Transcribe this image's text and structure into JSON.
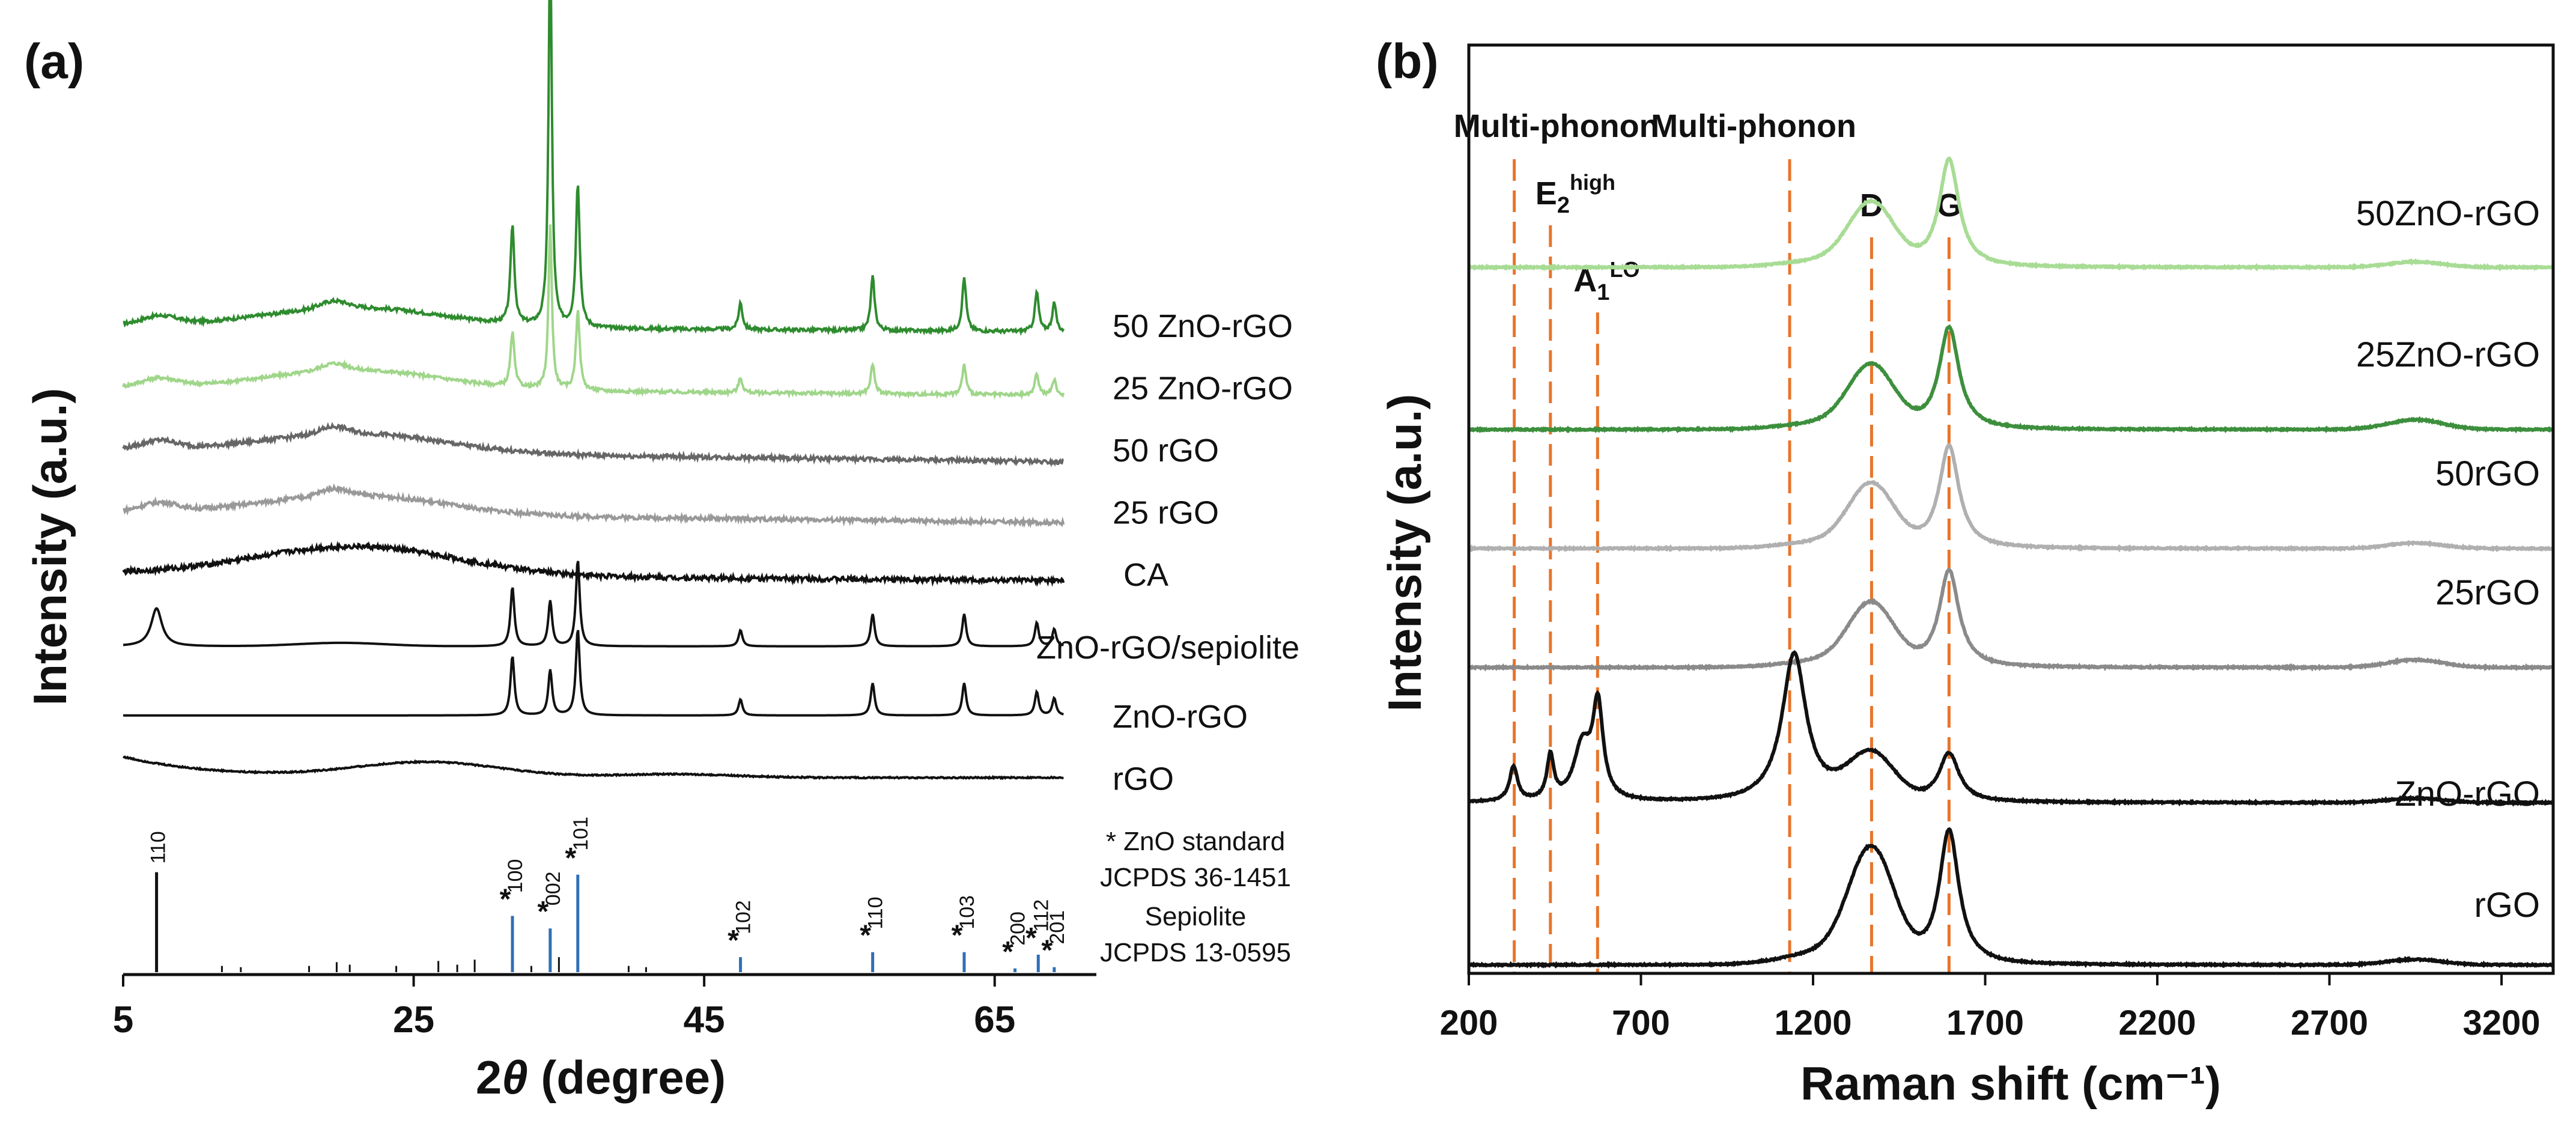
{
  "chart_data": [
    {
      "panel": "(a)",
      "type": "line",
      "xlabel_prefix": "2",
      "xlabel_theta": "θ",
      "xlabel_suffix": " (degree)",
      "ylabel": "Intensity (a.u.)",
      "xlim": [
        5,
        72
      ],
      "xticks": [
        5,
        25,
        45,
        65
      ],
      "series": [
        {
          "name": "50 ZnO-rGO",
          "color": "#2e8b2e",
          "offset": 9.4,
          "base_type": "composite",
          "peak_scale": 1.0,
          "noise": 0.05,
          "baseline_slope": -0.1
        },
        {
          "name": "25 ZnO-rGO",
          "color": "#9fd68a",
          "offset": 8.5,
          "base_type": "composite",
          "peak_scale": 0.55,
          "noise": 0.05,
          "baseline_slope": -0.12
        },
        {
          "name": "50 rGO",
          "color": "#666666",
          "offset": 7.6,
          "base_type": "composite",
          "peak_scale": 0.0,
          "noise": 0.06,
          "baseline_slope": -0.18
        },
        {
          "name": "25 rGO",
          "color": "#999999",
          "offset": 6.7,
          "base_type": "composite",
          "peak_scale": 0.0,
          "noise": 0.06,
          "baseline_slope": -0.16
        },
        {
          "name": "CA",
          "color": "#111111",
          "offset": 5.8,
          "base_type": "ca",
          "peak_scale": 0.0,
          "noise": 0.07,
          "baseline_slope": -0.1
        },
        {
          "name": "ZnO-rGO/sepiolite",
          "color": "#111111",
          "offset": 4.75,
          "base_type": "sepiolite",
          "peak_scale": 0.6,
          "noise": 0.0,
          "baseline_slope": 0.0
        },
        {
          "name": "ZnO-rGO",
          "color": "#111111",
          "offset": 3.75,
          "base_type": "flat",
          "peak_scale": 0.6,
          "noise": 0.0,
          "baseline_slope": 0.0
        },
        {
          "name": "rGO",
          "color": "#111111",
          "offset": 2.85,
          "base_type": "rgo",
          "peak_scale": 0.0,
          "noise": 0.02,
          "baseline_slope": 0.0
        }
      ],
      "zno_peaks": [
        {
          "x": 31.8,
          "h": 0.55
        },
        {
          "x": 34.4,
          "h": 0.42
        },
        {
          "x": 36.3,
          "h": 0.8
        },
        {
          "x": 47.5,
          "h": 0.15
        },
        {
          "x": 56.6,
          "h": 0.3
        },
        {
          "x": 62.9,
          "h": 0.3
        },
        {
          "x": 67.9,
          "h": 0.22
        },
        {
          "x": 69.1,
          "h": 0.16
        }
      ],
      "reference_lines": {
        "zno": [
          {
            "x": 31.8,
            "h": 0.45,
            "hkl": "100",
            "star": true
          },
          {
            "x": 34.4,
            "h": 0.35,
            "hkl": "002",
            "star": true
          },
          {
            "x": 36.3,
            "h": 0.78,
            "hkl": "101",
            "star": true
          },
          {
            "x": 47.5,
            "h": 0.12,
            "hkl": "102",
            "star": true
          },
          {
            "x": 56.6,
            "h": 0.16,
            "hkl": "110",
            "star": true
          },
          {
            "x": 62.9,
            "h": 0.16,
            "hkl": "103",
            "star": true
          },
          {
            "x": 66.4,
            "h": 0.03,
            "hkl": "200",
            "star": true
          },
          {
            "x": 68.0,
            "h": 0.14,
            "hkl": "112",
            "star": true
          },
          {
            "x": 69.1,
            "h": 0.04,
            "hkl": "201",
            "star": true
          }
        ],
        "sepiolite": [
          {
            "x": 7.3,
            "h": 0.8,
            "hkl": "110"
          },
          {
            "x": 11.8,
            "h": 0.05
          },
          {
            "x": 13.1,
            "h": 0.04
          },
          {
            "x": 17.8,
            "h": 0.05
          },
          {
            "x": 19.7,
            "h": 0.08
          },
          {
            "x": 20.6,
            "h": 0.06
          },
          {
            "x": 23.8,
            "h": 0.05
          },
          {
            "x": 26.7,
            "h": 0.09
          },
          {
            "x": 28.0,
            "h": 0.06
          },
          {
            "x": 29.2,
            "h": 0.1
          },
          {
            "x": 33.1,
            "h": 0.05
          },
          {
            "x": 35.0,
            "h": 0.12
          },
          {
            "x": 39.8,
            "h": 0.05
          },
          {
            "x": 41.0,
            "h": 0.04
          }
        ]
      },
      "legend_notes": [
        "* ZnO standard",
        "JCPDS 36-1451",
        "Sepiolite",
        "JCPDS 13-0595"
      ]
    },
    {
      "panel": "(b)",
      "type": "line",
      "xlabel": "Raman shift (cm⁻¹)",
      "ylabel": "Intensity (a.u.)",
      "xlim": [
        200,
        3350
      ],
      "xticks": [
        200,
        700,
        1200,
        1700,
        2200,
        2700,
        3200
      ],
      "series": [
        {
          "name": "50ZnO-rGO",
          "color": "#a8dc95",
          "offset": 6.5,
          "d": 0.55,
          "g": 1.0,
          "zno": 0.0,
          "band2d": 0.05
        },
        {
          "name": "25ZnO-rGO",
          "color": "#3d8f3d",
          "offset": 5.0,
          "d": 0.55,
          "g": 0.95,
          "zno": 0.0,
          "band2d": 0.09
        },
        {
          "name": "50rGO",
          "color": "#b0b0b0",
          "offset": 3.9,
          "d": 0.55,
          "g": 0.95,
          "zno": 0.0,
          "band2d": 0.05
        },
        {
          "name": "25rGO",
          "color": "#8a8a8a",
          "offset": 2.8,
          "d": 0.55,
          "g": 0.9,
          "zno": 0.0,
          "band2d": 0.07
        },
        {
          "name": "ZnO-rGO",
          "color": "#111111",
          "offset": 1.55,
          "d": 0.4,
          "g": 0.45,
          "zno": 1.0,
          "band2d": 0.04
        },
        {
          "name": "rGO",
          "color": "#111111",
          "offset": 0.05,
          "d": 1.0,
          "g": 1.25,
          "zno": 0.0,
          "band2d": 0.05
        }
      ],
      "zno_bands": [
        {
          "x": 330,
          "h": 0.32,
          "w": 14
        },
        {
          "x": 437,
          "h": 0.4,
          "w": 12
        },
        {
          "x": 530,
          "h": 0.5,
          "w": 30
        },
        {
          "x": 575,
          "h": 0.85,
          "w": 18
        },
        {
          "x": 1145,
          "h": 1.35,
          "w": 42
        }
      ],
      "markers": [
        {
          "x": 332,
          "label": "Multi-phonon"
        },
        {
          "x": 437,
          "label_main": "E",
          "label_sub": "2",
          "label_sup": "high"
        },
        {
          "x": 574,
          "label_main": "A",
          "label_sub": "1",
          "label_sup": "LO"
        },
        {
          "x": 1132,
          "label": "Multi-phonon"
        },
        {
          "x": 1370,
          "label": "D"
        },
        {
          "x": 1595,
          "label": "G"
        }
      ]
    }
  ]
}
